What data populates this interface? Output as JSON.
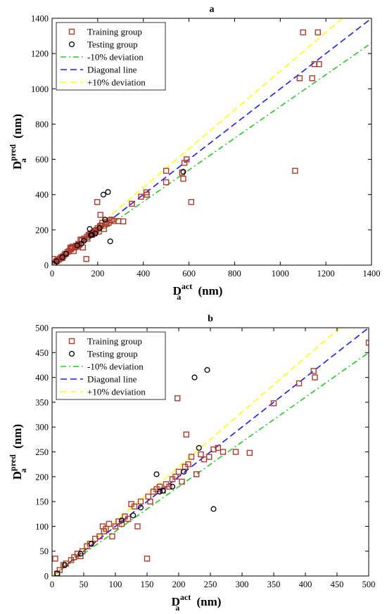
{
  "chart_data": [
    {
      "type": "scatter",
      "title": "a",
      "xlabel": {
        "base": "D",
        "sup": "act",
        "sub": "a",
        "unit": "(nm)"
      },
      "ylabel": {
        "base": "D",
        "sup": "pred",
        "sub": "a",
        "unit": "(nm)"
      },
      "xlim": [
        0,
        1400
      ],
      "ylim": [
        0,
        1400
      ],
      "xticks": [
        0,
        200,
        400,
        600,
        800,
        1000,
        1200,
        1400
      ],
      "yticks": [
        0,
        200,
        400,
        600,
        800,
        1000,
        1200,
        1400
      ],
      "legend_position": "top-left",
      "legend": [
        "Training group",
        "Testing group",
        "-10% deviation",
        "Diagonal line",
        "+10% deviation"
      ],
      "lines": [
        {
          "name": "-10% deviation",
          "slope": 0.9,
          "color": "#22cc22",
          "dash": "dashdot"
        },
        {
          "name": "Diagonal line",
          "slope": 1.0,
          "color": "#1a1aff",
          "dash": "dash"
        },
        {
          "name": "+10% deviation",
          "slope": 1.1,
          "color": "#ffff00",
          "dash": "dash"
        }
      ],
      "series": [
        {
          "name": "Training group",
          "marker": "square",
          "color": "#b03a2e",
          "fill": "#f4b183",
          "points": [
            [
              5,
              35
            ],
            [
              8,
              5
            ],
            [
              12,
              12
            ],
            [
              18,
              22
            ],
            [
              22,
              25
            ],
            [
              30,
              32
            ],
            [
              35,
              38
            ],
            [
              40,
              45
            ],
            [
              45,
              40
            ],
            [
              48,
              50
            ],
            [
              55,
              60
            ],
            [
              60,
              65
            ],
            [
              68,
              75
            ],
            [
              75,
              80
            ],
            [
              80,
              100
            ],
            [
              82,
              90
            ],
            [
              85,
              95
            ],
            [
              90,
              105
            ],
            [
              95,
              80
            ],
            [
              100,
              100
            ],
            [
              105,
              110
            ],
            [
              110,
              105
            ],
            [
              115,
              120
            ],
            [
              120,
              115
            ],
            [
              125,
              145
            ],
            [
              130,
              140
            ],
            [
              135,
              100
            ],
            [
              140,
              150
            ],
            [
              150,
              35
            ],
            [
              152,
              160
            ],
            [
              155,
              150
            ],
            [
              160,
              170
            ],
            [
              165,
              175
            ],
            [
              170,
              180
            ],
            [
              175,
              172
            ],
            [
              180,
              185
            ],
            [
              185,
              180
            ],
            [
              190,
              195
            ],
            [
              195,
              200
            ],
            [
              198,
              358
            ],
            [
              200,
              210
            ],
            [
              205,
              190
            ],
            [
              210,
              220
            ],
            [
              212,
              285
            ],
            [
              215,
              225
            ],
            [
              220,
              240
            ],
            [
              228,
              205
            ],
            [
              235,
              245
            ],
            [
              240,
              235
            ],
            [
              248,
              240
            ],
            [
              255,
              255
            ],
            [
              262,
              258
            ],
            [
              270,
              250
            ],
            [
              290,
              250
            ],
            [
              312,
              248
            ],
            [
              350,
              348
            ],
            [
              390,
              388
            ],
            [
              413,
              413
            ],
            [
              415,
              400
            ],
            [
              500,
              470
            ],
            [
              500,
              535
            ],
            [
              570,
              525
            ],
            [
              575,
              490
            ],
            [
              580,
              580
            ],
            [
              590,
              600
            ],
            [
              610,
              358
            ],
            [
              1065,
              535
            ],
            [
              1085,
              1060
            ],
            [
              1100,
              1320
            ],
            [
              1140,
              1060
            ],
            [
              1150,
              1140
            ],
            [
              1165,
              1320
            ],
            [
              1170,
              1140
            ]
          ]
        },
        {
          "name": "Testing group",
          "marker": "circle",
          "color": "#000000",
          "points": [
            [
              8,
              5
            ],
            [
              20,
              22
            ],
            [
              45,
              45
            ],
            [
              62,
              65
            ],
            [
              110,
              112
            ],
            [
              128,
              122
            ],
            [
              140,
              138
            ],
            [
              165,
              205
            ],
            [
              170,
              170
            ],
            [
              175,
              172
            ],
            [
              190,
              180
            ],
            [
              208,
              210
            ],
            [
              225,
              400
            ],
            [
              232,
              258
            ],
            [
              245,
              415
            ],
            [
              255,
              135
            ],
            [
              575,
              530
            ]
          ]
        }
      ]
    },
    {
      "type": "scatter",
      "title": "b",
      "xlabel": {
        "base": "D",
        "sup": "act",
        "sub": "a",
        "unit": "(nm)"
      },
      "ylabel": {
        "base": "D",
        "sup": "pred",
        "sub": "a",
        "unit": "(nm)"
      },
      "xlim": [
        0,
        500
      ],
      "ylim": [
        0,
        500
      ],
      "xticks": [
        0,
        50,
        100,
        150,
        200,
        250,
        300,
        350,
        400,
        450,
        500
      ],
      "yticks": [
        0,
        50,
        100,
        150,
        200,
        250,
        300,
        350,
        400,
        450,
        500
      ],
      "legend_position": "top-left",
      "legend": [
        "Training group",
        "Testing group",
        "-10% deviation",
        "Diagonal line",
        "+10% deviation"
      ],
      "lines": [
        {
          "name": "-10% deviation",
          "slope": 0.9,
          "color": "#22cc22",
          "dash": "dashdot"
        },
        {
          "name": "Diagonal line",
          "slope": 1.0,
          "color": "#1a1aff",
          "dash": "dash"
        },
        {
          "name": "+10% deviation",
          "slope": 1.1,
          "color": "#ffff00",
          "dash": "dash"
        }
      ],
      "series": [
        {
          "name": "Training group",
          "marker": "square",
          "color": "#b03a2e",
          "fill": "#f4b183",
          "points": [
            [
              5,
              35
            ],
            [
              8,
              5
            ],
            [
              12,
              12
            ],
            [
              18,
              22
            ],
            [
              22,
              25
            ],
            [
              30,
              32
            ],
            [
              35,
              38
            ],
            [
              40,
              45
            ],
            [
              45,
              40
            ],
            [
              48,
              50
            ],
            [
              55,
              60
            ],
            [
              60,
              65
            ],
            [
              68,
              75
            ],
            [
              75,
              80
            ],
            [
              80,
              100
            ],
            [
              82,
              90
            ],
            [
              85,
              95
            ],
            [
              90,
              105
            ],
            [
              95,
              80
            ],
            [
              100,
              100
            ],
            [
              105,
              110
            ],
            [
              110,
              105
            ],
            [
              115,
              120
            ],
            [
              120,
              115
            ],
            [
              125,
              145
            ],
            [
              130,
              140
            ],
            [
              135,
              100
            ],
            [
              140,
              150
            ],
            [
              150,
              35
            ],
            [
              152,
              160
            ],
            [
              155,
              150
            ],
            [
              160,
              170
            ],
            [
              165,
              175
            ],
            [
              170,
              180
            ],
            [
              175,
              172
            ],
            [
              180,
              185
            ],
            [
              185,
              180
            ],
            [
              190,
              195
            ],
            [
              195,
              200
            ],
            [
              198,
              358
            ],
            [
              200,
              210
            ],
            [
              205,
              190
            ],
            [
              210,
              220
            ],
            [
              212,
              285
            ],
            [
              215,
              225
            ],
            [
              220,
              240
            ],
            [
              228,
              205
            ],
            [
              235,
              245
            ],
            [
              240,
              235
            ],
            [
              248,
              240
            ],
            [
              255,
              255
            ],
            [
              262,
              258
            ],
            [
              270,
              250
            ],
            [
              290,
              250
            ],
            [
              312,
              248
            ],
            [
              350,
              348
            ],
            [
              390,
              388
            ],
            [
              413,
              413
            ],
            [
              415,
              400
            ],
            [
              500,
              470
            ]
          ]
        },
        {
          "name": "Testing group",
          "marker": "circle",
          "color": "#000000",
          "points": [
            [
              8,
              5
            ],
            [
              20,
              22
            ],
            [
              45,
              45
            ],
            [
              62,
              65
            ],
            [
              110,
              112
            ],
            [
              128,
              122
            ],
            [
              140,
              138
            ],
            [
              165,
              205
            ],
            [
              170,
              170
            ],
            [
              175,
              172
            ],
            [
              190,
              180
            ],
            [
              208,
              210
            ],
            [
              225,
              400
            ],
            [
              232,
              258
            ],
            [
              245,
              415
            ],
            [
              255,
              135
            ]
          ]
        }
      ]
    }
  ]
}
